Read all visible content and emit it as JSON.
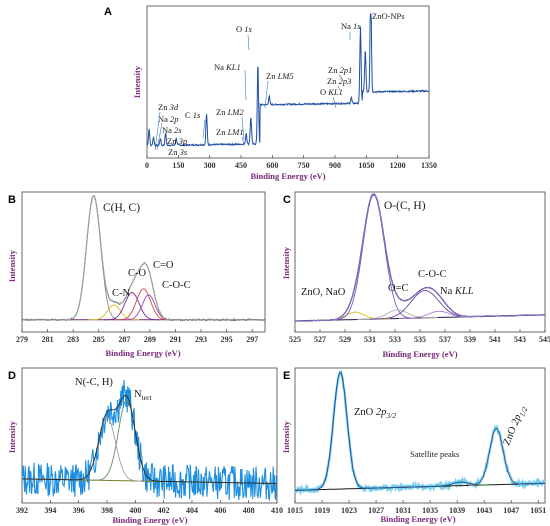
{
  "chart_data": [
    {
      "panel": "A",
      "type": "line",
      "xlabel": "Binding Energy (eV)",
      "ylabel": "Intensity",
      "xlim": [
        0,
        1350
      ],
      "xticks": [
        0,
        150,
        300,
        450,
        600,
        750,
        900,
        1050,
        1200,
        1350
      ],
      "legend": "ZnO-NPs",
      "peaks": [
        {
          "name": "Zn 3d",
          "x": 10,
          "h": 0.12
        },
        {
          "name": "Na 2p",
          "x": 31,
          "h": 0.06
        },
        {
          "name": "Na 2s",
          "x": 64,
          "h": 0.05
        },
        {
          "name": "Zn 3p",
          "x": 89,
          "h": 0.09
        },
        {
          "name": "Zn 3s",
          "x": 140,
          "h": 0.05
        },
        {
          "name": "C 1s",
          "x": 285,
          "h": 0.22
        },
        {
          "name": "Zn LM1",
          "x": 475,
          "h": 0.08
        },
        {
          "name": "Zn LM2",
          "x": 498,
          "h": 0.15
        },
        {
          "name": "O 1s",
          "x": 531,
          "h": 0.58
        },
        {
          "name": "Na KL1",
          "x": 495,
          "h": 0.06
        },
        {
          "name": "Zn LM5",
          "x": 585,
          "h": 0.06
        },
        {
          "name": "O KL1",
          "x": 978,
          "h": 0.04
        },
        {
          "name": "Zn 2p3",
          "x": 1022,
          "h": 0.55
        },
        {
          "name": "Zn 2p1",
          "x": 1045,
          "h": 0.3
        },
        {
          "name": "Na 1s",
          "x": 1071,
          "h": 0.85
        }
      ],
      "annotations": [
        {
          "text": "O ",
          "em": "1s"
        },
        {
          "text": "Na ",
          "em": "1s"
        },
        {
          "text": "Na ",
          "em": "KL1"
        },
        {
          "text": "Zn ",
          "em": "LM5"
        },
        {
          "text": "Zn ",
          "em": "2p1"
        },
        {
          "text": "Zn ",
          "em": "2p3"
        },
        {
          "text": "O ",
          "em": "KL1"
        },
        {
          "text": "Zn ",
          "em": "LM2"
        },
        {
          "text": "Zn ",
          "em": "LM1"
        },
        {
          "text": "C ",
          "em": "1s"
        },
        {
          "text": "Zn ",
          "em": "3d"
        },
        {
          "text": "Na ",
          "em": "2p"
        },
        {
          "text": "Na ",
          "em": "2s"
        },
        {
          "text": "Zn ",
          "em": "3p"
        },
        {
          "text": "Zn ",
          "em": "3s"
        }
      ]
    },
    {
      "panel": "B",
      "type": "line",
      "xlabel": "Binding Energy (eV)",
      "ylabel": "Intensity",
      "xlim": [
        279,
        298
      ],
      "xticks": [
        279,
        281,
        283,
        285,
        287,
        289,
        291,
        293,
        295,
        297
      ],
      "components": [
        {
          "name": "C(H, C)",
          "center": 284.6,
          "height": 1.0,
          "width": 0.55
        },
        {
          "name": "C-N",
          "center": 286.2,
          "height": 0.12,
          "width": 0.5
        },
        {
          "name": "C-O",
          "center": 287.6,
          "height": 0.22,
          "width": 0.55
        },
        {
          "name": "C=O",
          "center": 288.5,
          "height": 0.25,
          "width": 0.55
        },
        {
          "name": "C-O-C",
          "center": 288.9,
          "height": 0.2,
          "width": 0.5
        }
      ],
      "annotations": [
        "C(H, C)",
        "C-O",
        "C=O",
        "C-N",
        "C-O-C"
      ]
    },
    {
      "panel": "C",
      "type": "line",
      "xlabel": "Binding Energy (eV)",
      "ylabel": "Intensity",
      "xlim": [
        525,
        545
      ],
      "xticks": [
        525,
        527,
        529,
        531,
        533,
        535,
        537,
        539,
        541,
        543,
        545
      ],
      "components": [
        {
          "name": "ZnO, NaO",
          "center": 529.8,
          "height": 0.06,
          "width": 0.7
        },
        {
          "name": "O-(C, H)",
          "center": 531.3,
          "height": 1.0,
          "width": 0.85
        },
        {
          "name": "O=C",
          "center": 533.2,
          "height": 0.07,
          "width": 0.8
        },
        {
          "name": "C-O-C",
          "center": 535.4,
          "height": 0.22,
          "width": 1.1
        },
        {
          "name": "Na KLL",
          "center": 536.5,
          "height": 0.05,
          "width": 0.8
        }
      ],
      "annotations": [
        {
          "text": "O-(C, H)"
        },
        {
          "text": "ZnO, NaO"
        },
        {
          "text": "O=C"
        },
        {
          "text": "C-O-C"
        },
        {
          "text": "Na ",
          "em": "KLL"
        }
      ]
    },
    {
      "panel": "D",
      "type": "line",
      "xlabel": "Binding Energy (eV)",
      "ylabel": "Intensity",
      "xlim": [
        392,
        410
      ],
      "xticks": [
        392,
        394,
        396,
        398,
        400,
        402,
        404,
        406,
        408,
        410
      ],
      "components": [
        {
          "name": "N(-C, H)",
          "center": 398.0,
          "height": 0.55,
          "width": 0.6
        },
        {
          "name": "N tert",
          "center": 399.4,
          "height": 0.7,
          "width": 0.6
        }
      ],
      "annotations": [
        {
          "text": "N(-C, H)"
        },
        {
          "text": "N",
          "sub": "tert"
        }
      ]
    },
    {
      "panel": "E",
      "type": "line",
      "xlabel": "Binding Energy (eV)",
      "ylabel": "Intensity",
      "xlim": [
        1015,
        1052
      ],
      "xticks": [
        1015,
        1019,
        1023,
        1027,
        1031,
        1035,
        1039,
        1043,
        1047,
        1051
      ],
      "components": [
        {
          "name": "ZnO 2p3/2",
          "center": 1021.7,
          "height": 1.0,
          "width": 1.0
        },
        {
          "name": "ZnO 2p1/2",
          "center": 1044.8,
          "height": 0.48,
          "width": 1.0
        },
        {
          "name": "Satellite peaks",
          "center": 1039.5,
          "height": 0.03,
          "width": 1.2
        }
      ],
      "annotations": [
        {
          "text": "ZnO ",
          "em": "2p",
          "sub": "3/2"
        },
        {
          "text": "ZnO ",
          "em": "2p",
          "sub": "1/2"
        },
        {
          "text": "Satellite peaks"
        }
      ]
    }
  ]
}
